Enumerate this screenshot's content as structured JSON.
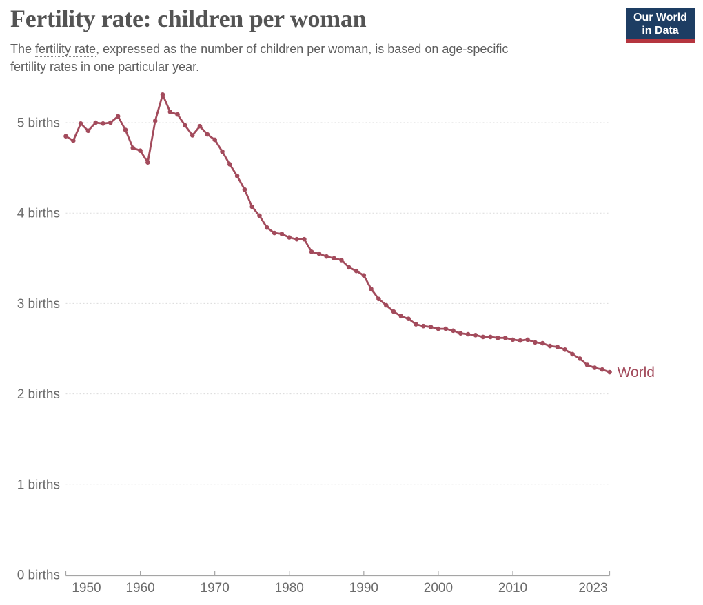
{
  "header": {
    "title": "Fertility rate: children per woman",
    "subtitle": {
      "prefix": "The ",
      "term": "fertility rate",
      "line1_rest": ", expressed as the number of children per woman, is based on age-specific",
      "line2": "fertility rates in one particular year."
    },
    "logo": {
      "line1": "Our World",
      "line2": "in Data",
      "bg_color": "#1d3d63",
      "accent_color": "#b5353f"
    }
  },
  "chart_data": {
    "type": "line",
    "title": "Fertility rate: children per woman",
    "subtitle": "The fertility rate, expressed as the number of children per woman, is based on age-specific fertility rates in one particular year.",
    "xlabel": "",
    "ylabel": "births",
    "xlim": [
      1950,
      2023
    ],
    "ylim": [
      0,
      5.5
    ],
    "grid": true,
    "legend_position": "end-of-line",
    "line_color": "#a34b5c",
    "grid_color": "#dadada",
    "axis_color": "#a5a5a5",
    "tick_text_color": "#6b6b6b",
    "xticks": [
      1950,
      1960,
      1970,
      1980,
      1990,
      2000,
      2010,
      2023
    ],
    "xtick_labels": [
      "1950",
      "1960",
      "1970",
      "1980",
      "1990",
      "2000",
      "2010",
      "2023"
    ],
    "yticks": [
      0,
      1,
      2,
      3,
      4,
      5
    ],
    "ytick_labels": [
      "0 births",
      "1 births",
      "2 births",
      "3 births",
      "4 births",
      "5 births"
    ],
    "series": [
      {
        "name": "World",
        "end_label": "World",
        "color": "#a34b5c",
        "x": [
          1950,
          1951,
          1952,
          1953,
          1954,
          1955,
          1956,
          1957,
          1958,
          1959,
          1960,
          1961,
          1962,
          1963,
          1964,
          1965,
          1966,
          1967,
          1968,
          1969,
          1970,
          1971,
          1972,
          1973,
          1974,
          1975,
          1976,
          1977,
          1978,
          1979,
          1980,
          1981,
          1982,
          1983,
          1984,
          1985,
          1986,
          1987,
          1988,
          1989,
          1990,
          1991,
          1992,
          1993,
          1994,
          1995,
          1996,
          1997,
          1998,
          1999,
          2000,
          2001,
          2002,
          2003,
          2004,
          2005,
          2006,
          2007,
          2008,
          2009,
          2010,
          2011,
          2012,
          2013,
          2014,
          2015,
          2016,
          2017,
          2018,
          2019,
          2020,
          2021,
          2022,
          2023
        ],
        "values": [
          4.85,
          4.8,
          4.99,
          4.91,
          5.0,
          4.99,
          5.0,
          5.07,
          4.92,
          4.72,
          4.69,
          4.56,
          5.02,
          5.31,
          5.12,
          5.09,
          4.97,
          4.86,
          4.96,
          4.87,
          4.81,
          4.68,
          4.54,
          4.41,
          4.26,
          4.07,
          3.97,
          3.84,
          3.78,
          3.77,
          3.73,
          3.71,
          3.71,
          3.57,
          3.55,
          3.52,
          3.5,
          3.48,
          3.4,
          3.36,
          3.31,
          3.16,
          3.05,
          2.98,
          2.91,
          2.86,
          2.83,
          2.77,
          2.75,
          2.74,
          2.72,
          2.72,
          2.7,
          2.67,
          2.66,
          2.65,
          2.63,
          2.63,
          2.62,
          2.62,
          2.6,
          2.59,
          2.6,
          2.57,
          2.56,
          2.53,
          2.52,
          2.49,
          2.44,
          2.39,
          2.32,
          2.29,
          2.27,
          2.24
        ]
      }
    ]
  }
}
